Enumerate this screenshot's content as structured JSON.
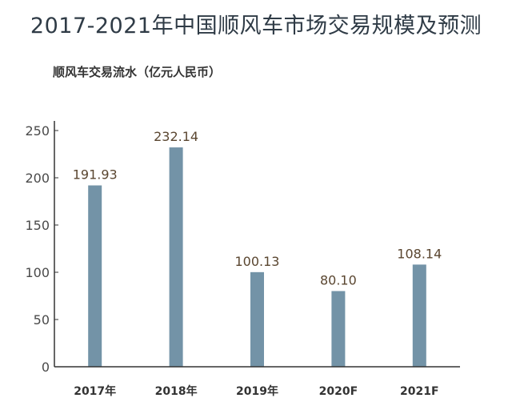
{
  "title": "2017-2021年中国顺风车市场交易规模及预测",
  "chart_data": {
    "type": "bar",
    "title": "2017-2021年中国顺风车市场交易规模及预测",
    "ylabel": "顺风车交易流水（亿元人民币）",
    "xlabel": "",
    "categories": [
      "2017年",
      "2018年",
      "2019年",
      "2020F",
      "2021F"
    ],
    "values": [
      191.93,
      232.14,
      100.13,
      80.1,
      108.14
    ],
    "value_labels": [
      "191.93",
      "232.14",
      "100.13",
      "80.10",
      "108.14"
    ],
    "ylim": [
      0,
      250
    ],
    "yticks": [
      "250",
      "200",
      "150",
      "100",
      "50",
      "0"
    ],
    "grid": false,
    "legend": "none",
    "bar_color": "#7393a7",
    "axis_color": "#333333"
  }
}
